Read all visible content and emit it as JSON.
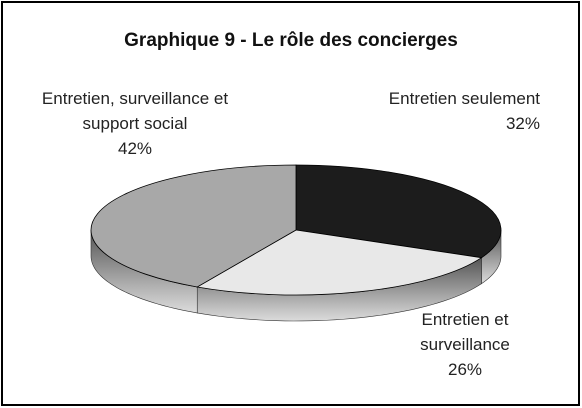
{
  "chart_data": {
    "type": "pie3d",
    "title": "Graphique 9 - Le rôle des concierges",
    "categories": [
      "Entretien seulement",
      "Entretien et surveillance",
      "Entretien, surveillance et support social"
    ],
    "values": [
      32,
      26,
      42
    ],
    "value_labels": [
      "32%",
      "26%",
      "42%"
    ],
    "colors": [
      "#1c1c1c",
      "#e8e8e8",
      "#a8a8a8"
    ]
  }
}
